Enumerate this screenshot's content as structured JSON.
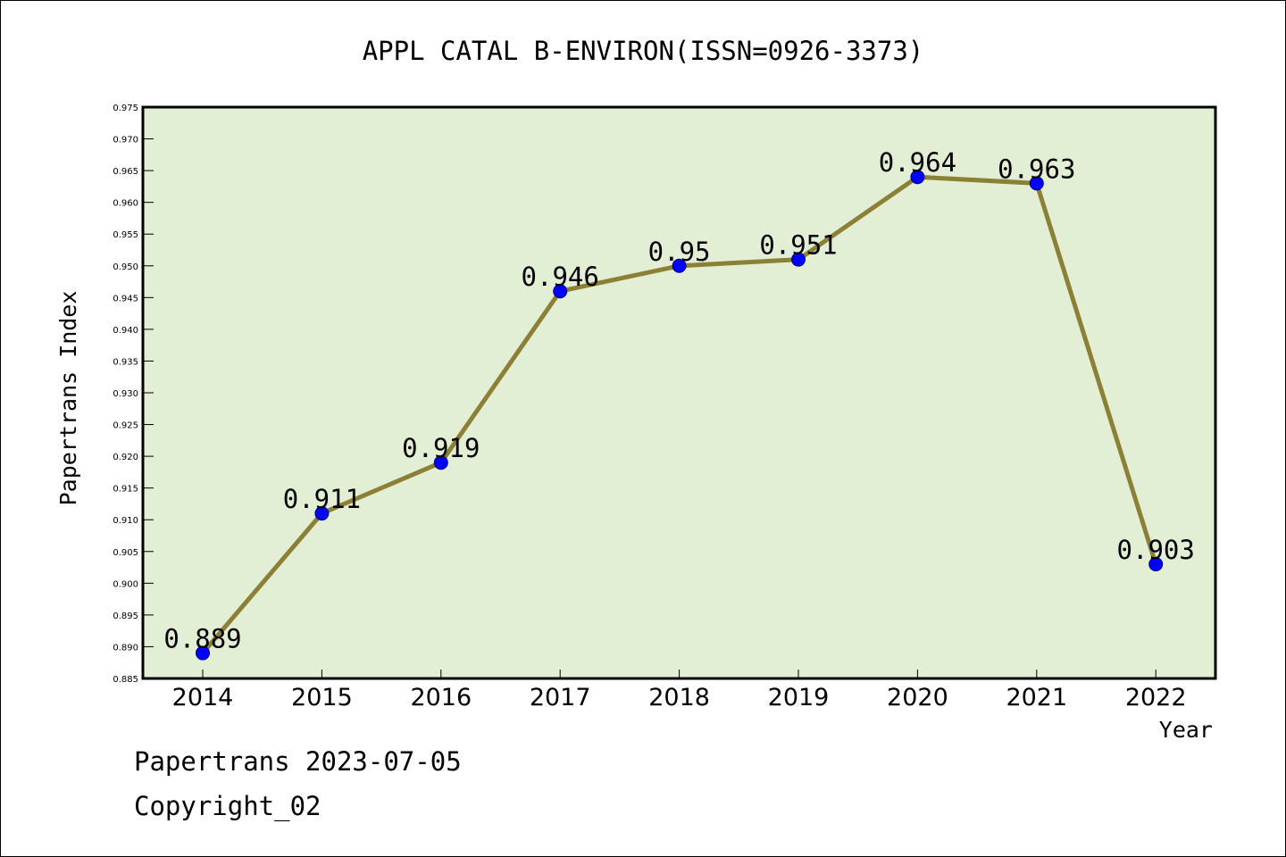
{
  "chart_data": {
    "type": "line",
    "title": "APPL CATAL B-ENVIRON(ISSN=0926-3373)",
    "xlabel": "Year",
    "ylabel": "Papertrans Index",
    "categories": [
      "2014",
      "2015",
      "2016",
      "2017",
      "2018",
      "2019",
      "2020",
      "2021",
      "2022"
    ],
    "series": [
      {
        "values": [
          0.889,
          0.911,
          0.919,
          0.946,
          0.95,
          0.951,
          0.964,
          0.963,
          0.903
        ],
        "data_labels": [
          "0.889",
          "0.911",
          "0.919",
          "0.946",
          "0.95",
          "0.951",
          "0.964",
          "0.963",
          "0.903"
        ]
      }
    ],
    "ylim": [
      0.885,
      0.975
    ],
    "yticks": [
      "0.885",
      "0.890",
      "0.895",
      "0.900",
      "0.905",
      "0.910",
      "0.915",
      "0.920",
      "0.925",
      "0.930",
      "0.935",
      "0.940",
      "0.945",
      "0.950",
      "0.955",
      "0.960",
      "0.965",
      "0.970",
      "0.975"
    ],
    "grid": false,
    "legend": "none",
    "colors": {
      "plot_background": "#e2efd5",
      "line": "#8c8036",
      "marker": "#0000ff"
    }
  },
  "footer": {
    "source": "Papertrans 2023-07-05",
    "copyright": "Copyright_02"
  }
}
